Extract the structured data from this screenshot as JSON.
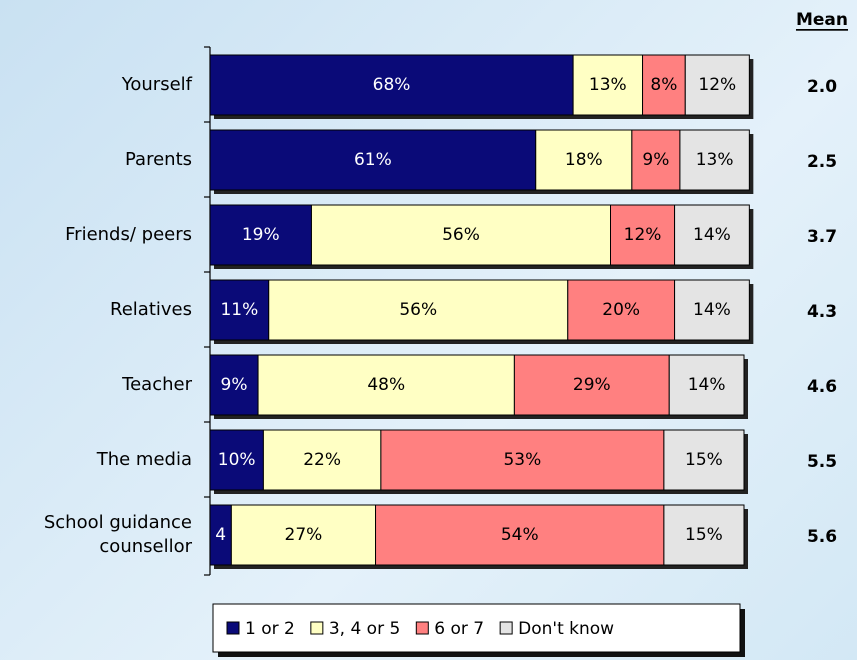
{
  "chart_data": {
    "type": "stacked-barh",
    "categories": [
      "Yourself",
      "Parents",
      "Friends/ peers",
      "Relatives",
      "Teacher",
      "The media",
      "School guidance counsellor"
    ],
    "series": [
      {
        "name": "1 or 2",
        "color": "#0a0a78",
        "values": [
          68,
          61,
          19,
          11,
          9,
          10,
          4
        ],
        "value_labels": [
          "68%",
          "61%",
          "19%",
          "11%",
          "9%",
          "10%",
          "4"
        ]
      },
      {
        "name": "3, 4 or 5",
        "color": "#ffffc4",
        "values": [
          13,
          18,
          56,
          56,
          48,
          22,
          27
        ],
        "value_labels": [
          "13%",
          "18%",
          "56%",
          "56%",
          "48%",
          "22%",
          "27%"
        ]
      },
      {
        "name": "6 or 7",
        "color": "#ff8080",
        "values": [
          8,
          9,
          12,
          20,
          29,
          53,
          54
        ],
        "value_labels": [
          "8%",
          "9%",
          "12%",
          "20%",
          "29%",
          "53%",
          "54%"
        ]
      },
      {
        "name": "Don't know",
        "color": "#e4e4e4",
        "values": [
          12,
          13,
          14,
          14,
          14,
          15,
          15
        ],
        "value_labels": [
          "12%",
          "13%",
          "14%",
          "14%",
          "14%",
          "15%",
          "15%"
        ]
      }
    ],
    "xlim": [
      0,
      100
    ],
    "mean_title": "Mean",
    "mean_values": [
      "2.0",
      "2.5",
      "3.7",
      "4.3",
      "4.6",
      "5.5",
      "5.6"
    ],
    "legend": "bottom"
  }
}
